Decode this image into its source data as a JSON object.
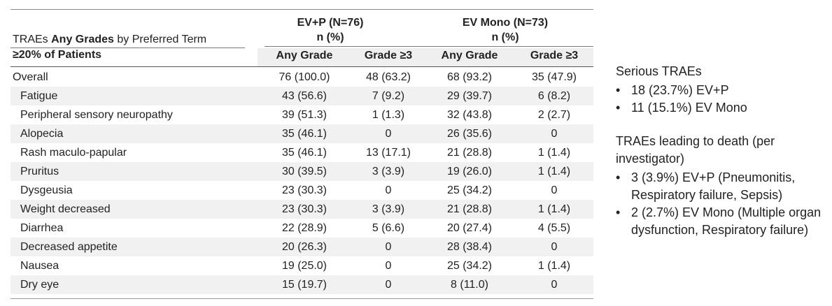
{
  "table": {
    "group_headers": [
      {
        "label": "EV+P (N=76)",
        "sub": "n (%)"
      },
      {
        "label": "EV Mono (N=73)",
        "sub": "n (%)"
      }
    ],
    "title_prefix": "TRAEs ",
    "title_bold": "Any Grades",
    "title_suffix": " by Preferred Term",
    "subtitle": "≥20% of Patients",
    "col_headers": [
      "Any Grade",
      "Grade ≥3",
      "Any Grade",
      "Grade ≥3"
    ],
    "rows": [
      {
        "term": "Overall",
        "values": [
          "76 (100.0)",
          "48 (63.2)",
          "68 (93.2)",
          "35 (47.9)"
        ]
      },
      {
        "term": "Fatigue",
        "values": [
          "43 (56.6)",
          "7 (9.2)",
          "29 (39.7)",
          "6 (8.2)"
        ]
      },
      {
        "term": "Peripheral sensory neuropathy",
        "values": [
          "39 (51.3)",
          "1 (1.3)",
          "32 (43.8)",
          "2 (2.7)"
        ]
      },
      {
        "term": "Alopecia",
        "values": [
          "35 (46.1)",
          "0",
          "26 (35.6)",
          "0"
        ]
      },
      {
        "term": "Rash maculo-papular",
        "values": [
          "35 (46.1)",
          "13 (17.1)",
          "21 (28.8)",
          "1 (1.4)"
        ]
      },
      {
        "term": "Pruritus",
        "values": [
          "30 (39.5)",
          "3 (3.9)",
          "19 (26.0)",
          "1 (1.4)"
        ]
      },
      {
        "term": "Dysgeusia",
        "values": [
          "23 (30.3)",
          "0",
          "25 (34.2)",
          "0"
        ]
      },
      {
        "term": "Weight decreased",
        "values": [
          "23 (30.3)",
          "3 (3.9)",
          "21 (28.8)",
          "1 (1.4)"
        ]
      },
      {
        "term": "Diarrhea",
        "values": [
          "22 (28.9)",
          "5 (6.6)",
          "20 (27.4)",
          "4 (5.5)"
        ]
      },
      {
        "term": "Decreased appetite",
        "values": [
          "20 (26.3)",
          "0",
          "28 (38.4)",
          "0"
        ]
      },
      {
        "term": "Nausea",
        "values": [
          "19 (25.0)",
          "0",
          "25 (34.2)",
          "1 (1.4)"
        ]
      },
      {
        "term": "Dry eye",
        "values": [
          "15 (19.7)",
          "0",
          "8 (11.0)",
          "0"
        ]
      }
    ]
  },
  "side": {
    "serious_heading": "Serious TRAEs",
    "serious_items": [
      "18 (23.7%) EV+P",
      "11 (15.1%) EV Mono"
    ],
    "death_heading": "TRAEs leading to death (per investigator)",
    "death_items": [
      "3 (3.9%) EV+P (Pneumonitis, Respiratory failure, Sepsis)",
      "2 (2.7%) EV Mono (Multiple organ dysfunction, Respiratory failure)"
    ],
    "bullet": "•"
  }
}
